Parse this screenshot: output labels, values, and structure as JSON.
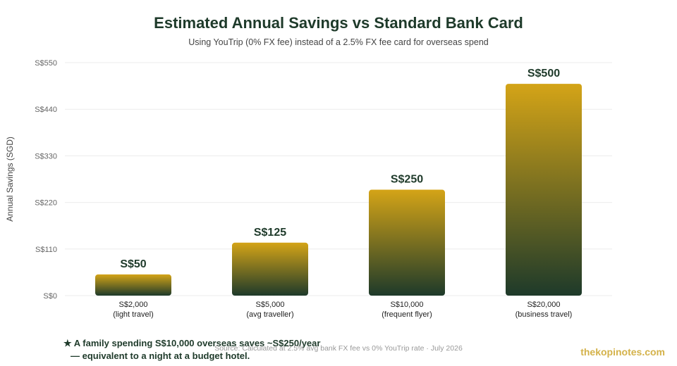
{
  "header": {
    "title": "Estimated Annual Savings vs Standard Bank Card",
    "subtitle": "Using YouTrip (0% FX fee) instead of a 2.5% FX fee card for overseas spend"
  },
  "chart_data": {
    "type": "bar",
    "title": "Estimated Annual Savings vs Standard Bank Card",
    "subtitle": "Using YouTrip (0% FX fee) instead of a 2.5% FX fee card for overseas spend",
    "xlabel": "",
    "ylabel": "Annual Savings (SGD)",
    "categories": [
      [
        "S$2,000",
        "(light travel)"
      ],
      [
        "S$5,000",
        "(avg traveller)"
      ],
      [
        "S$10,000",
        "(frequent flyer)"
      ],
      [
        "S$20,000",
        "(business travel)"
      ]
    ],
    "values": [
      50,
      125,
      250,
      500
    ],
    "value_labels": [
      "S$50",
      "S$125",
      "S$250",
      "S$500"
    ],
    "ylim": [
      0,
      550
    ],
    "yticks": [
      0,
      110,
      220,
      330,
      440,
      550
    ],
    "ytick_labels": [
      "S$0",
      "S$110",
      "S$220",
      "S$330",
      "S$440",
      "S$550"
    ],
    "grid": true,
    "colors": {
      "bar_top": "#d4a417",
      "bar_bottom": "#1e3a2a",
      "grid": "#ebebeb",
      "label": "#1e3a2a"
    }
  },
  "footer": {
    "note_line1": "★ A family spending S$10,000 overseas saves ~S$250/year",
    "note_line2": "— equivalent to a night at a budget hotel.",
    "source": "Source: Calculated at 2.5% avg bank FX fee vs 0% YouTrip rate · July 2026",
    "brand": "thekopinotes.com"
  }
}
